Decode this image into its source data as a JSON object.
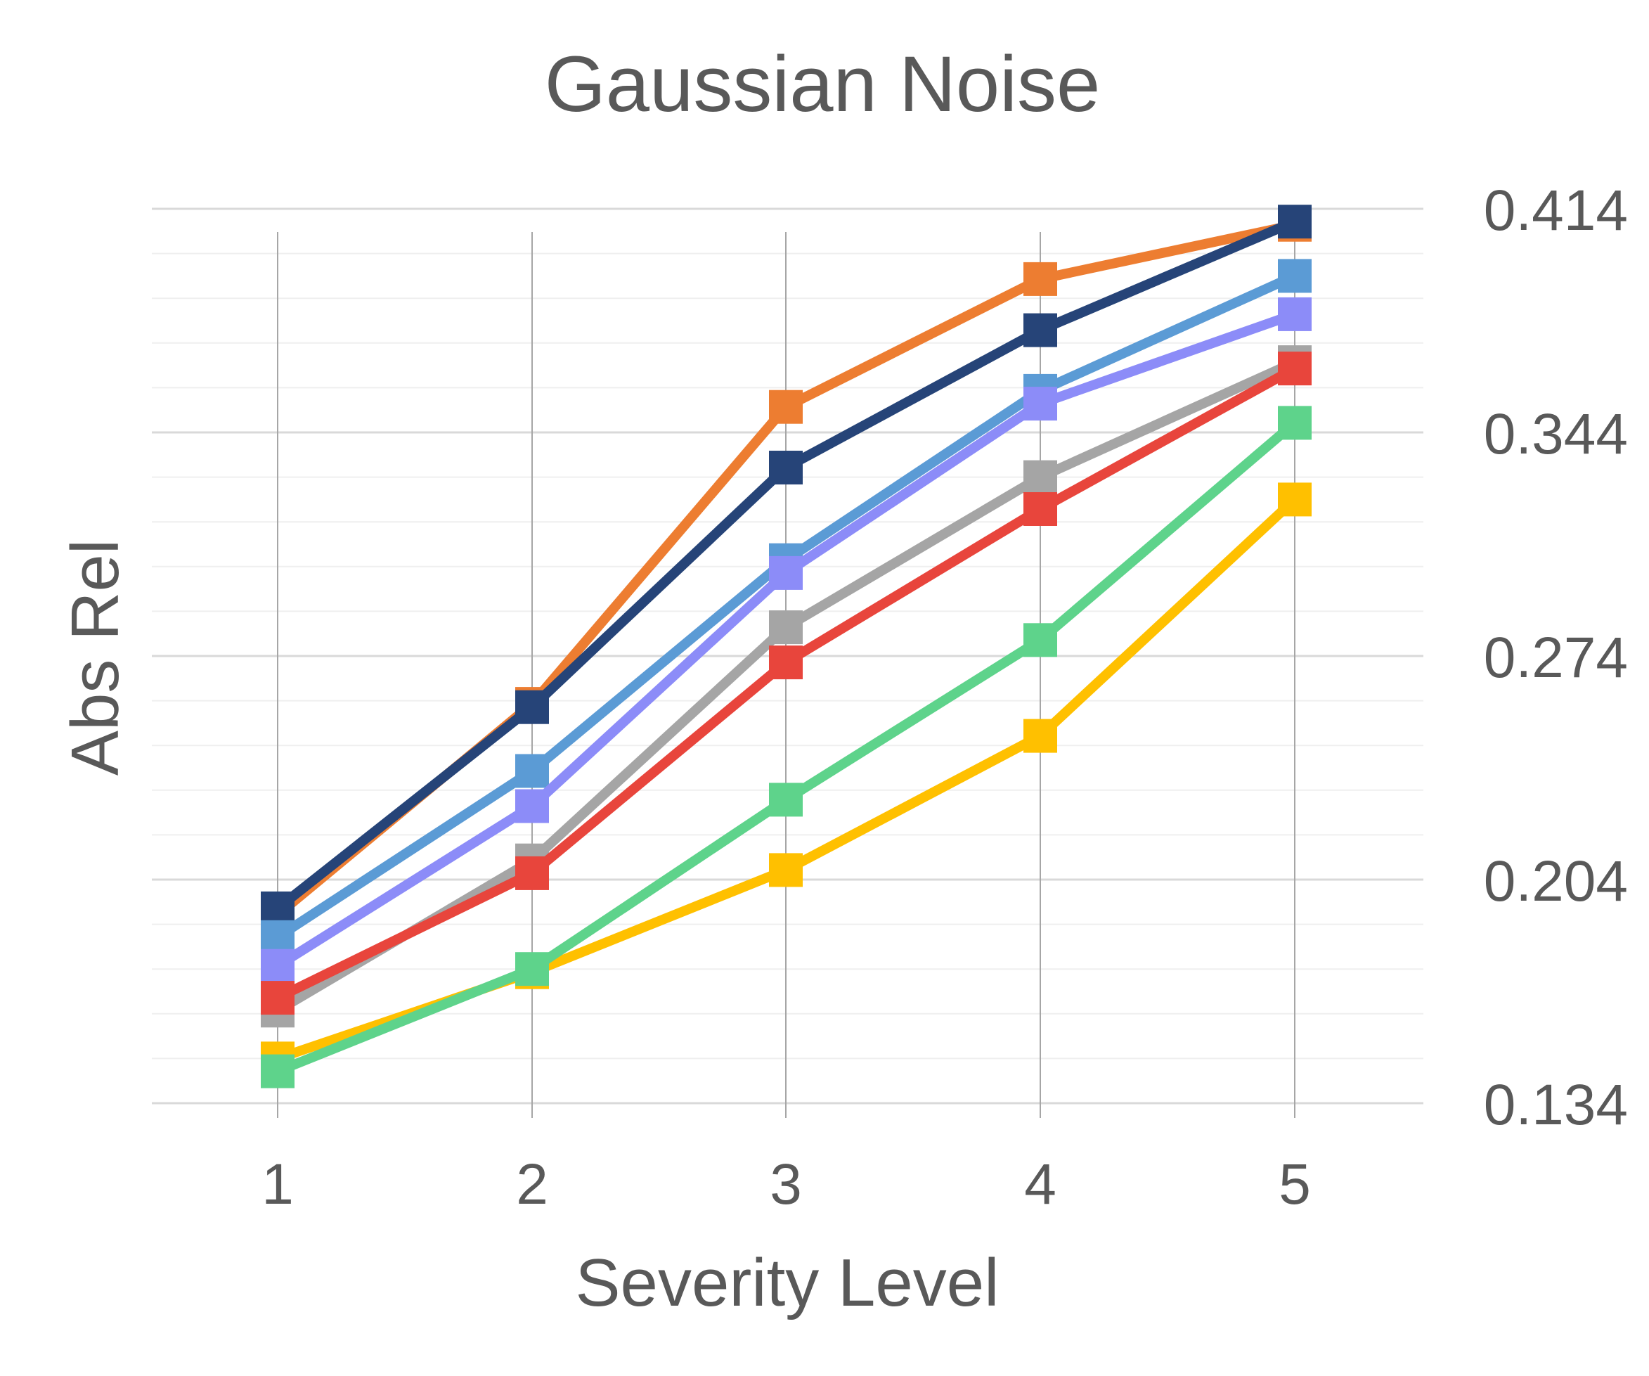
{
  "chart_data": {
    "type": "line",
    "title": "Gaussian Noise",
    "xlabel": "Severity Level",
    "ylabel": "Abs Rel",
    "categories": [
      "1",
      "2",
      "3",
      "4",
      "5"
    ],
    "y_ticks": [
      "0.414",
      "0.344",
      "0.274",
      "0.204",
      "0.134"
    ],
    "ylim": [
      0.134,
      0.414
    ],
    "y_axis_side": "right",
    "grid": true,
    "legend": "none",
    "marker": "square",
    "series": [
      {
        "color": "#ED7D31",
        "values": [
          0.193,
          0.259,
          0.352,
          0.392,
          0.409
        ]
      },
      {
        "color": "#264478",
        "values": [
          0.195,
          0.258,
          0.333,
          0.376,
          0.41
        ]
      },
      {
        "color": "#5B9BD5",
        "values": [
          0.186,
          0.238,
          0.304,
          0.357,
          0.393
        ]
      },
      {
        "color": "#8C8CF8",
        "values": [
          0.177,
          0.227,
          0.3,
          0.353,
          0.381
        ]
      },
      {
        "color": "#A5A5A5",
        "values": [
          0.163,
          0.21,
          0.283,
          0.33,
          0.366
        ]
      },
      {
        "color": "#E8453C",
        "values": [
          0.167,
          0.206,
          0.272,
          0.32,
          0.364
        ]
      },
      {
        "color": "#FFC000",
        "values": [
          0.148,
          0.175,
          0.207,
          0.249,
          0.323
        ]
      },
      {
        "color": "#5ED38B",
        "values": [
          0.144,
          0.176,
          0.229,
          0.279,
          0.347
        ]
      }
    ]
  }
}
